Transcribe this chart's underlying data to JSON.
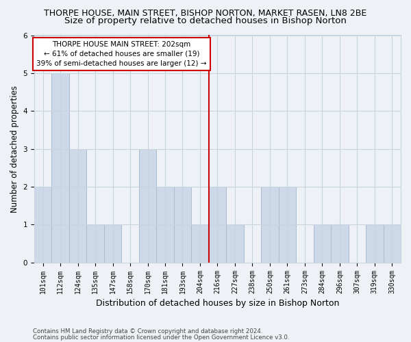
{
  "title1": "THORPE HOUSE, MAIN STREET, BISHOP NORTON, MARKET RASEN, LN8 2BE",
  "title2": "Size of property relative to detached houses in Bishop Norton",
  "xlabel": "Distribution of detached houses by size in Bishop Norton",
  "ylabel": "Number of detached properties",
  "categories": [
    "101sqm",
    "112sqm",
    "124sqm",
    "135sqm",
    "147sqm",
    "158sqm",
    "170sqm",
    "181sqm",
    "193sqm",
    "204sqm",
    "216sqm",
    "227sqm",
    "238sqm",
    "250sqm",
    "261sqm",
    "273sqm",
    "284sqm",
    "296sqm",
    "307sqm",
    "319sqm",
    "330sqm"
  ],
  "values": [
    2,
    5,
    3,
    1,
    1,
    0,
    3,
    2,
    2,
    1,
    2,
    1,
    0,
    2,
    2,
    0,
    1,
    1,
    0,
    1,
    1
  ],
  "bar_color": "#cdd9e8",
  "bar_edge_color": "#aabcce",
  "reference_line_x": 9.5,
  "annotation_text": "THORPE HOUSE MAIN STREET: 202sqm\n← 61% of detached houses are smaller (19)\n39% of semi-detached houses are larger (12) →",
  "annotation_box_color": "#ffffff",
  "annotation_box_edge": "#cc0000",
  "vline_color": "#cc0000",
  "ylim": [
    0,
    6
  ],
  "yticks": [
    0,
    1,
    2,
    3,
    4,
    5,
    6
  ],
  "footer1": "Contains HM Land Registry data © Crown copyright and database right 2024.",
  "footer2": "Contains public sector information licensed under the Open Government Licence v3.0.",
  "bg_color": "#eef2f7",
  "plot_bg_color": "#eef2f7",
  "grid_color": "#c8d4e0",
  "title1_fontsize": 9,
  "title2_fontsize": 9.5,
  "tick_fontsize": 7,
  "ylabel_fontsize": 8.5,
  "xlabel_fontsize": 9
}
